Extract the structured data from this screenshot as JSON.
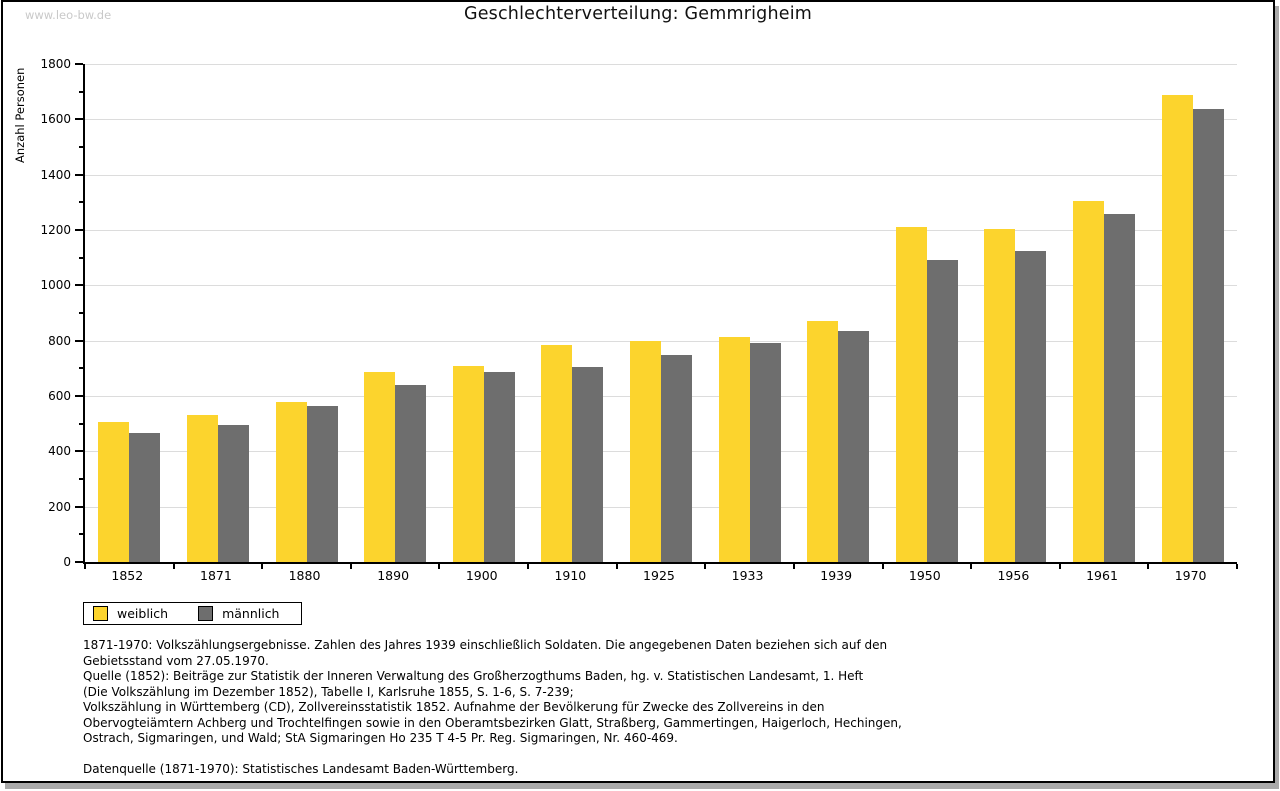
{
  "watermark": "www.leo-bw.de",
  "title": "Geschlechterverteilung: Gemmrigheim",
  "chart_data": {
    "type": "bar",
    "title": "Geschlechterverteilung: Gemmrigheim",
    "xlabel": "",
    "ylabel": "Anzahl Personen",
    "ylim": [
      0,
      1800
    ],
    "ytick_major_step": 200,
    "ytick_minor_step": 100,
    "grid": true,
    "legend_position": "bottom-left",
    "categories": [
      "1852",
      "1871",
      "1880",
      "1890",
      "1900",
      "1910",
      "1925",
      "1933",
      "1939",
      "1950",
      "1956",
      "1961",
      "1970"
    ],
    "series": [
      {
        "name": "weiblich",
        "color": "#fcd42d",
        "values": [
          505,
          530,
          580,
          685,
          710,
          785,
          800,
          812,
          870,
          1212,
          1205,
          1305,
          1688
        ]
      },
      {
        "name": "männlich",
        "color": "#6e6e6e",
        "values": [
          465,
          495,
          565,
          640,
          685,
          705,
          748,
          793,
          835,
          1090,
          1125,
          1258,
          1637
        ]
      }
    ]
  },
  "colors": {
    "weiblich": "#fcd42d",
    "maennlich": "#6e6e6e",
    "gridline": "#dcdcdc",
    "axis": "#000000",
    "watermark": "#c9c9c9",
    "shadow": "#a9a9a9"
  },
  "footnotes": {
    "lines": [
      "1871-1970: Volkszählungsergebnisse. Zahlen des Jahres 1939 einschließlich Soldaten. Die angegebenen Daten beziehen sich auf den",
      "Gebietsstand vom 27.05.1970.",
      "Quelle (1852): Beiträge zur Statistik der Inneren Verwaltung des Großherzogthums Baden, hg. v. Statistischen Landesamt, 1. Heft",
      "(Die Volkszählung im Dezember 1852), Tabelle I, Karlsruhe 1855, S. 1-6, S. 7-239;",
      "Volkszählung in Württemberg (CD), Zollvereinsstatistik 1852. Aufnahme der Bevölkerung für Zwecke des Zollvereins in den",
      "Obervogteiämtern Achberg und Trochtelfingen sowie in den Oberamtsbezirken Glatt, Straßberg, Gammertingen, Haigerloch, Hechingen,",
      "Ostrach, Sigmaringen, und Wald; StA Sigmaringen Ho 235 T 4-5 Pr. Reg. Sigmaringen, Nr. 460-469."
    ],
    "datenquelle": "Datenquelle (1871-1970): Statistisches Landesamt Baden-Württemberg."
  }
}
